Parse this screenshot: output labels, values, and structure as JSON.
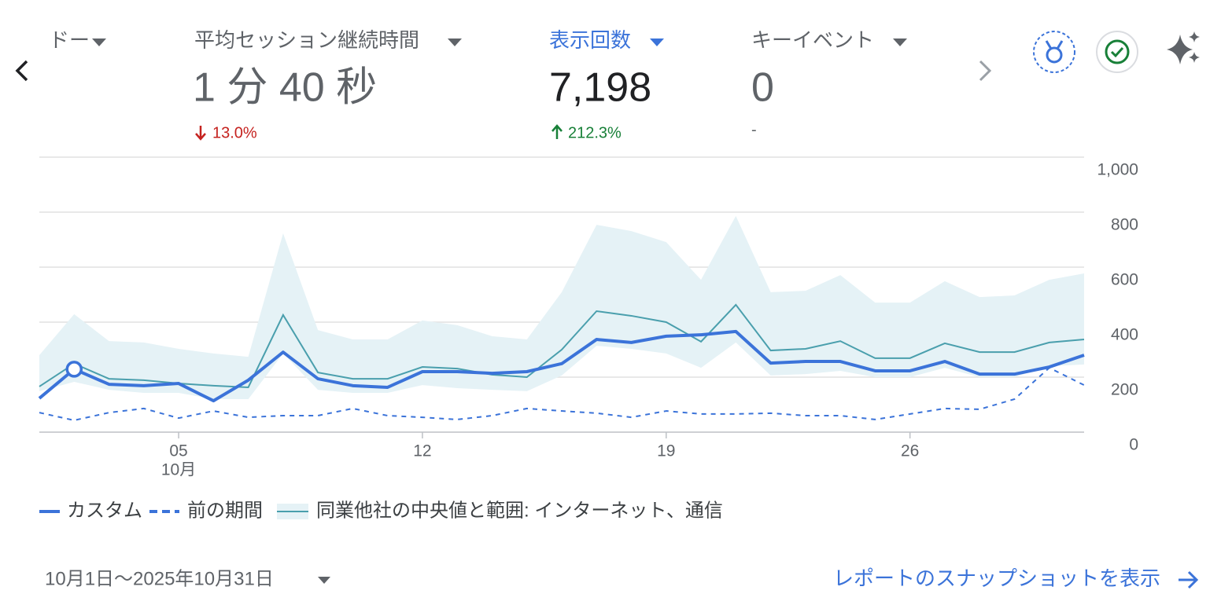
{
  "header": {
    "metrics": [
      {
        "label": "ドー"
      },
      {
        "label": "平均セッション継続時間",
        "value": "1 分 40 秒",
        "change": "13.0%"
      },
      {
        "label": "表示回数",
        "value": "7,198",
        "change": "212.3%"
      },
      {
        "label": "キーイベント",
        "value": "0",
        "change": "-"
      }
    ]
  },
  "chart_data": {
    "type": "line",
    "categories": [
      null,
      null,
      null,
      null,
      "05",
      null,
      null,
      null,
      null,
      null,
      null,
      "12",
      null,
      null,
      null,
      null,
      null,
      null,
      "19",
      null,
      null,
      null,
      null,
      null,
      null,
      "26",
      null,
      null,
      null,
      null,
      null
    ],
    "x_sublabel": "10月",
    "series": [
      {
        "name": "カスタム",
        "color": "#3b73d9",
        "values": [
          123,
          229,
          174,
          169,
          177,
          114,
          189,
          291,
          194,
          169,
          163,
          220,
          220,
          214,
          220,
          249,
          337,
          326,
          349,
          354,
          366,
          251,
          257,
          257,
          223,
          223,
          257,
          211,
          211,
          237,
          280
        ]
      },
      {
        "name": "前の期間",
        "color": "#3b73d9",
        "dashed": true,
        "values": [
          71,
          43,
          71,
          86,
          51,
          77,
          54,
          60,
          60,
          86,
          60,
          54,
          46,
          60,
          86,
          77,
          69,
          54,
          77,
          66,
          66,
          69,
          60,
          60,
          46,
          66,
          86,
          83,
          120,
          234,
          171
        ]
      },
      {
        "name": "同業他社の中央値と範囲: インターネット、通信",
        "color": "#4a9fad",
        "band_color": "#e5f2f6",
        "values": [
          166,
          249,
          194,
          189,
          177,
          169,
          163,
          426,
          217,
          194,
          194,
          237,
          231,
          209,
          200,
          300,
          440,
          423,
          400,
          329,
          463,
          297,
          303,
          331,
          269,
          269,
          323,
          291,
          291,
          326,
          337
        ],
        "lower": [
          149,
          183,
          154,
          143,
          143,
          120,
          120,
          286,
          154,
          143,
          143,
          171,
          160,
          154,
          149,
          206,
          314,
          303,
          286,
          234,
          326,
          206,
          211,
          223,
          200,
          200,
          234,
          200,
          200,
          240,
          246
        ],
        "upper": [
          280,
          429,
          331,
          326,
          303,
          286,
          274,
          723,
          371,
          337,
          337,
          406,
          389,
          349,
          337,
          509,
          754,
          731,
          691,
          554,
          786,
          509,
          514,
          571,
          471,
          471,
          549,
          491,
          497,
          554,
          577
        ]
      }
    ],
    "marker_index": 1,
    "ylim": [
      0,
      1000
    ],
    "yticks": [
      0,
      200,
      400,
      600,
      800,
      {
        "value": 1000,
        "label": "1,000"
      }
    ],
    "grid": true
  },
  "footer": {
    "date_range": "10月1日〜2025年10月31日",
    "link": "レポートのスナップショットを表示"
  }
}
